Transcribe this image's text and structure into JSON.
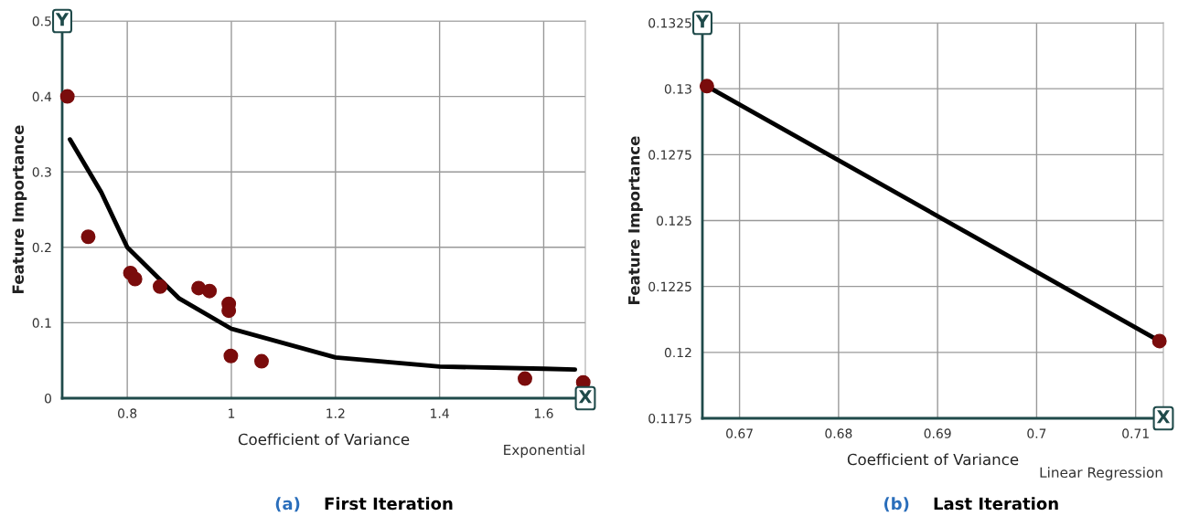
{
  "chart_data": [
    {
      "type": "scatter",
      "title": "(a)",
      "subtitle": "First Iteration",
      "xlabel": "Coefficient of Variance",
      "ylabel": "Feature Importance",
      "annotations": [
        "Y",
        "X",
        "Exponential"
      ],
      "xlim": [
        0.675,
        1.68
      ],
      "xticks": [
        0.8,
        1,
        1.2,
        1.4,
        1.6
      ],
      "ylim": [
        0,
        0.5
      ],
      "yticks": [
        0,
        0.1,
        0.2,
        0.3,
        0.4,
        0.5
      ],
      "grid": true,
      "series": [
        {
          "marker": "circle",
          "color": "#7a0c0c",
          "x": [
            0.685,
            0.725,
            0.806,
            0.815,
            0.863,
            0.937,
            0.958,
            0.995,
            0.995,
            0.999,
            1.058,
            1.564,
            1.676
          ],
          "values": [
            0.4,
            0.214,
            0.166,
            0.158,
            0.148,
            0.146,
            0.142,
            0.125,
            0.116,
            0.056,
            0.049,
            0.026,
            0.021
          ]
        },
        {
          "type": "line",
          "color": "#000000",
          "x": [
            0.69,
            0.75,
            0.8,
            0.9,
            1.0,
            1.2,
            1.4,
            1.6,
            1.66
          ],
          "values": [
            0.343,
            0.273,
            0.2,
            0.132,
            0.092,
            0.054,
            0.042,
            0.039,
            0.038
          ]
        }
      ]
    },
    {
      "type": "scatter",
      "title": "(b)",
      "subtitle": "Last Iteration",
      "xlabel": "Coefficient of Variance",
      "ylabel": "Feature Importance",
      "annotations": [
        "Y",
        "X",
        "Linear Regression"
      ],
      "xlim": [
        0.66625,
        0.7128
      ],
      "xticks": [
        0.67,
        0.68,
        0.69,
        0.7,
        0.71
      ],
      "ylim": [
        0.1175,
        0.1325
      ],
      "yticks": [
        0.1175,
        0.12,
        0.1225,
        0.125,
        0.1275,
        0.13,
        0.1325
      ],
      "grid": true,
      "series": [
        {
          "type": "line",
          "color": "#000000",
          "x": [
            0.6667,
            0.7124
          ],
          "values": [
            0.1301,
            0.12043
          ]
        },
        {
          "marker": "circle",
          "color": "#7a0c0c",
          "x": [
            0.6667,
            0.7124
          ],
          "values": [
            0.1301,
            0.12043
          ]
        }
      ]
    }
  ]
}
